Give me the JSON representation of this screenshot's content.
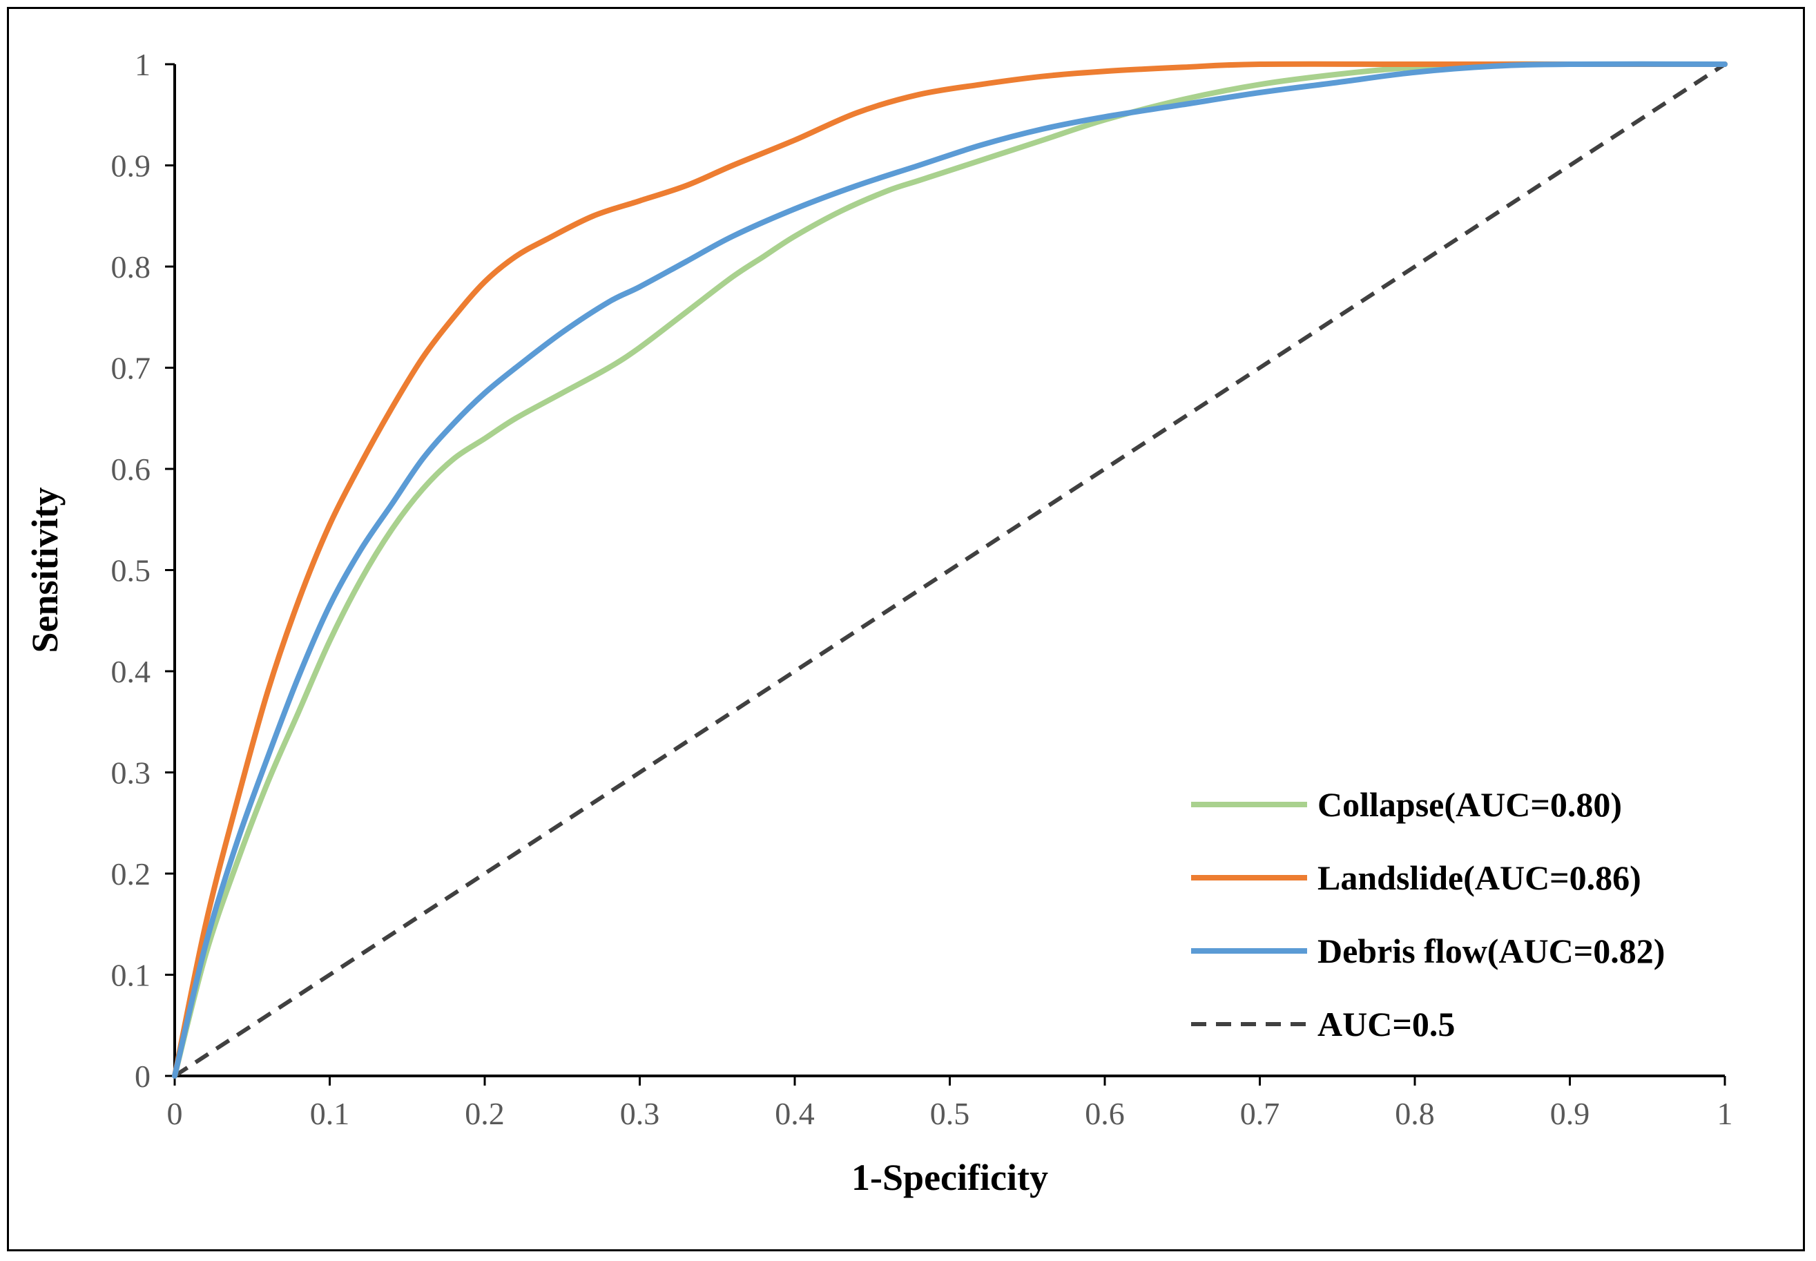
{
  "chart_data": {
    "type": "line",
    "title": "",
    "xlabel": "1-Specificity",
    "ylabel": "Sensitivity",
    "xlim": [
      0,
      1
    ],
    "ylim": [
      0,
      1
    ],
    "x_ticks": [
      "0",
      "0.1",
      "0.2",
      "0.3",
      "0.4",
      "0.5",
      "0.6",
      "0.7",
      "0.8",
      "0.9",
      "1"
    ],
    "y_ticks": [
      "0",
      "0.1",
      "0.2",
      "0.3",
      "0.4",
      "0.5",
      "0.6",
      "0.7",
      "0.8",
      "0.9",
      "1"
    ],
    "grid": false,
    "legend_position": "bottom-right",
    "series": [
      {
        "name": "Collapse(AUC=0.80)",
        "color": "#a9d18e",
        "dash": false,
        "x": [
          0,
          0.02,
          0.04,
          0.06,
          0.08,
          0.1,
          0.12,
          0.14,
          0.16,
          0.18,
          0.2,
          0.22,
          0.25,
          0.28,
          0.3,
          0.33,
          0.36,
          0.38,
          0.4,
          0.43,
          0.46,
          0.48,
          0.5,
          0.53,
          0.56,
          0.6,
          0.65,
          0.7,
          0.75,
          0.8,
          0.85,
          0.9,
          1
        ],
        "y": [
          0,
          0.12,
          0.21,
          0.29,
          0.36,
          0.43,
          0.49,
          0.54,
          0.58,
          0.61,
          0.63,
          0.65,
          0.675,
          0.7,
          0.72,
          0.755,
          0.79,
          0.81,
          0.83,
          0.855,
          0.875,
          0.885,
          0.895,
          0.91,
          0.925,
          0.945,
          0.965,
          0.98,
          0.99,
          0.997,
          1,
          1,
          1
        ]
      },
      {
        "name": "Landslide(AUC=0.86)",
        "color": "#ed7d31",
        "dash": false,
        "x": [
          0,
          0.02,
          0.04,
          0.06,
          0.08,
          0.1,
          0.12,
          0.14,
          0.16,
          0.18,
          0.2,
          0.22,
          0.24,
          0.27,
          0.3,
          0.33,
          0.36,
          0.4,
          0.44,
          0.48,
          0.52,
          0.56,
          0.6,
          0.65,
          0.7,
          0.8,
          0.9,
          1
        ],
        "y": [
          0,
          0.15,
          0.27,
          0.38,
          0.47,
          0.545,
          0.605,
          0.66,
          0.71,
          0.75,
          0.785,
          0.81,
          0.827,
          0.85,
          0.865,
          0.88,
          0.9,
          0.925,
          0.952,
          0.97,
          0.98,
          0.988,
          0.993,
          0.997,
          1,
          1,
          1,
          1
        ]
      },
      {
        "name": "Debris flow(AUC=0.82)",
        "color": "#5b9bd5",
        "dash": false,
        "x": [
          0,
          0.02,
          0.04,
          0.06,
          0.08,
          0.1,
          0.12,
          0.14,
          0.16,
          0.18,
          0.2,
          0.22,
          0.25,
          0.28,
          0.3,
          0.33,
          0.36,
          0.4,
          0.44,
          0.48,
          0.52,
          0.56,
          0.6,
          0.65,
          0.7,
          0.75,
          0.8,
          0.85,
          0.9,
          1
        ],
        "y": [
          0,
          0.13,
          0.23,
          0.315,
          0.395,
          0.465,
          0.52,
          0.565,
          0.61,
          0.645,
          0.675,
          0.7,
          0.735,
          0.765,
          0.78,
          0.805,
          0.83,
          0.857,
          0.88,
          0.9,
          0.92,
          0.936,
          0.948,
          0.96,
          0.972,
          0.982,
          0.992,
          0.998,
          1,
          1
        ]
      },
      {
        "name": "AUC=0.5",
        "color": "#404040",
        "dash": true,
        "x": [
          0,
          1
        ],
        "y": [
          0,
          1
        ]
      }
    ]
  }
}
